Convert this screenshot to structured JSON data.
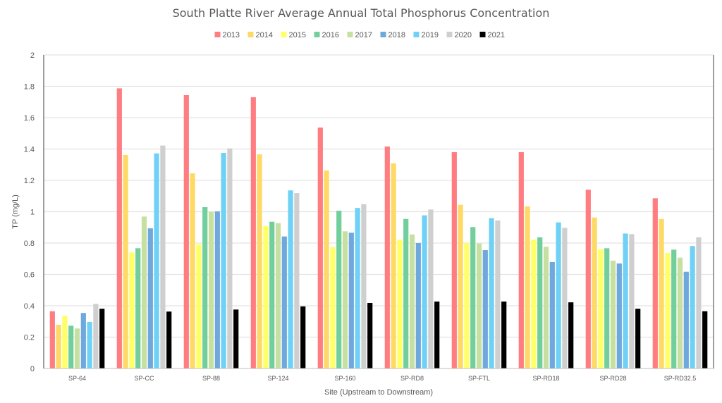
{
  "chart_data": {
    "type": "bar",
    "title": "South Platte River Average Annual Total Phosphorus Concentration",
    "xlabel": "Site (Upstream to Downstream)",
    "ylabel": "TP (mg/L)",
    "ylim": [
      0,
      2
    ],
    "yticks": [
      "0",
      "0.2",
      "0.4",
      "0.6",
      "0.8",
      "1",
      "1.2",
      "1.4",
      "1.6",
      "1.8",
      "2"
    ],
    "grid": true,
    "legend_position": "top",
    "categories": [
      "SP-64",
      "SP-CC",
      "SP-88",
      "SP-124",
      "SP-160",
      "SP-RD8",
      "SP-FTL",
      "SP-RD18",
      "SP-RD28",
      "SP-RD32.5"
    ],
    "series": [
      {
        "name": "2013",
        "color": "#FF7C80",
        "values": [
          0.365,
          1.787,
          1.744,
          1.73,
          1.537,
          1.416,
          1.38,
          1.38,
          1.14,
          1.086
        ]
      },
      {
        "name": "2014",
        "color": "#FFD966",
        "values": [
          0.279,
          1.362,
          1.245,
          1.366,
          1.263,
          1.309,
          1.044,
          1.034,
          0.963,
          0.954
        ]
      },
      {
        "name": "2015",
        "color": "#FFFF66",
        "values": [
          0.337,
          0.74,
          0.792,
          0.909,
          0.775,
          0.821,
          0.8,
          0.822,
          0.761,
          0.736
        ]
      },
      {
        "name": "2016",
        "color": "#72CF9B",
        "values": [
          0.273,
          0.767,
          1.029,
          0.936,
          1.006,
          0.954,
          0.902,
          0.837,
          0.767,
          0.758
        ]
      },
      {
        "name": "2017",
        "color": "#C5E0A0",
        "values": [
          0.255,
          0.969,
          0.998,
          0.927,
          0.875,
          0.855,
          0.797,
          0.776,
          0.688,
          0.707
        ]
      },
      {
        "name": "2018",
        "color": "#6FA8DC",
        "values": [
          0.354,
          0.894,
          1.002,
          0.842,
          0.866,
          0.8,
          0.755,
          0.679,
          0.67,
          0.617
        ]
      },
      {
        "name": "2019",
        "color": "#6FD1F5",
        "values": [
          0.297,
          1.372,
          1.375,
          1.136,
          1.024,
          0.977,
          0.959,
          0.932,
          0.861,
          0.781
        ]
      },
      {
        "name": "2020",
        "color": "#CFCFCF",
        "values": [
          0.412,
          1.422,
          1.404,
          1.119,
          1.048,
          1.014,
          0.944,
          0.897,
          0.857,
          0.837
        ]
      },
      {
        "name": "2021",
        "color": "#000000",
        "values": [
          0.381,
          0.363,
          0.376,
          0.396,
          0.418,
          0.427,
          0.427,
          0.422,
          0.381,
          0.365
        ]
      }
    ]
  }
}
